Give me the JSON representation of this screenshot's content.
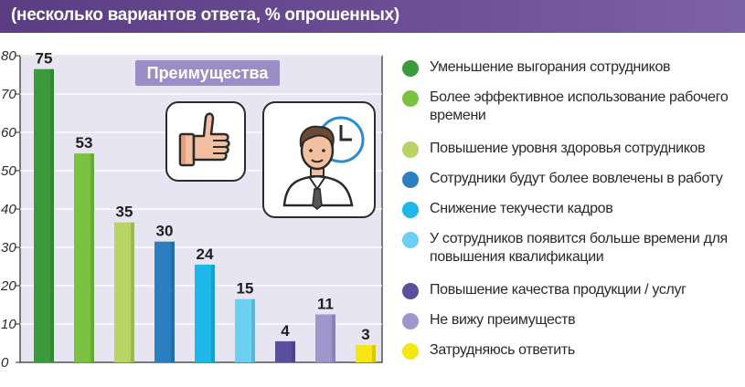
{
  "header": {
    "title": "(несколько вариантов ответа, % опрошенных)"
  },
  "badge_label": "Преимущества",
  "chart_data": {
    "type": "bar",
    "categories": [
      "Уменьшение выгорания сотрудников",
      "Более эффективное использование рабочего времени",
      "Повышение уровня здоровья сотрудников",
      "Сотрудники будут более вовлечены в работу",
      "Снижение текучести кадров",
      "У сотрудников появится больше времени для повышения квалификации",
      "Повышение качества продукции / услуг",
      "Не вижу преимуществ",
      "Затрудняюсь ответить"
    ],
    "values": [
      75,
      53,
      35,
      30,
      24,
      15,
      4,
      11,
      3
    ],
    "colors": [
      "#3a9a3c",
      "#7cc242",
      "#b7d465",
      "#2b7fc1",
      "#1fb6e9",
      "#6cd0f2",
      "#5a4f9c",
      "#9f96cc",
      "#f4e714"
    ],
    "ylim": [
      0,
      80
    ],
    "yticks": [
      0,
      10,
      20,
      30,
      40,
      50,
      60,
      70,
      80
    ],
    "grid": true,
    "legend_position": "right"
  },
  "legend": [
    {
      "label": "Уменьшение выгорания сотрудников",
      "color": "#3a9a3c"
    },
    {
      "label": "Более эффективное использование рабочего времени",
      "color": "#7cc242"
    },
    {
      "label": "Повышение уровня здоровья сотрудников",
      "color": "#b7d465"
    },
    {
      "label": "Сотрудники будут более вовлечены в работу",
      "color": "#2b7fc1"
    },
    {
      "label": "Снижение текучести кадров",
      "color": "#1fb6e9"
    },
    {
      "label": "У сотрудников появится больше времени для повышения квалификации",
      "color": "#6cd0f2"
    },
    {
      "label": "Повышение качества продукции / услуг",
      "color": "#5a4f9c"
    },
    {
      "label": "Не вижу преимуществ",
      "color": "#9f96cc"
    },
    {
      "label": "Затрудняюсь ответить",
      "color": "#f4e714"
    }
  ],
  "icons": [
    "thumbs-up-icon",
    "employee-clock-icon"
  ]
}
